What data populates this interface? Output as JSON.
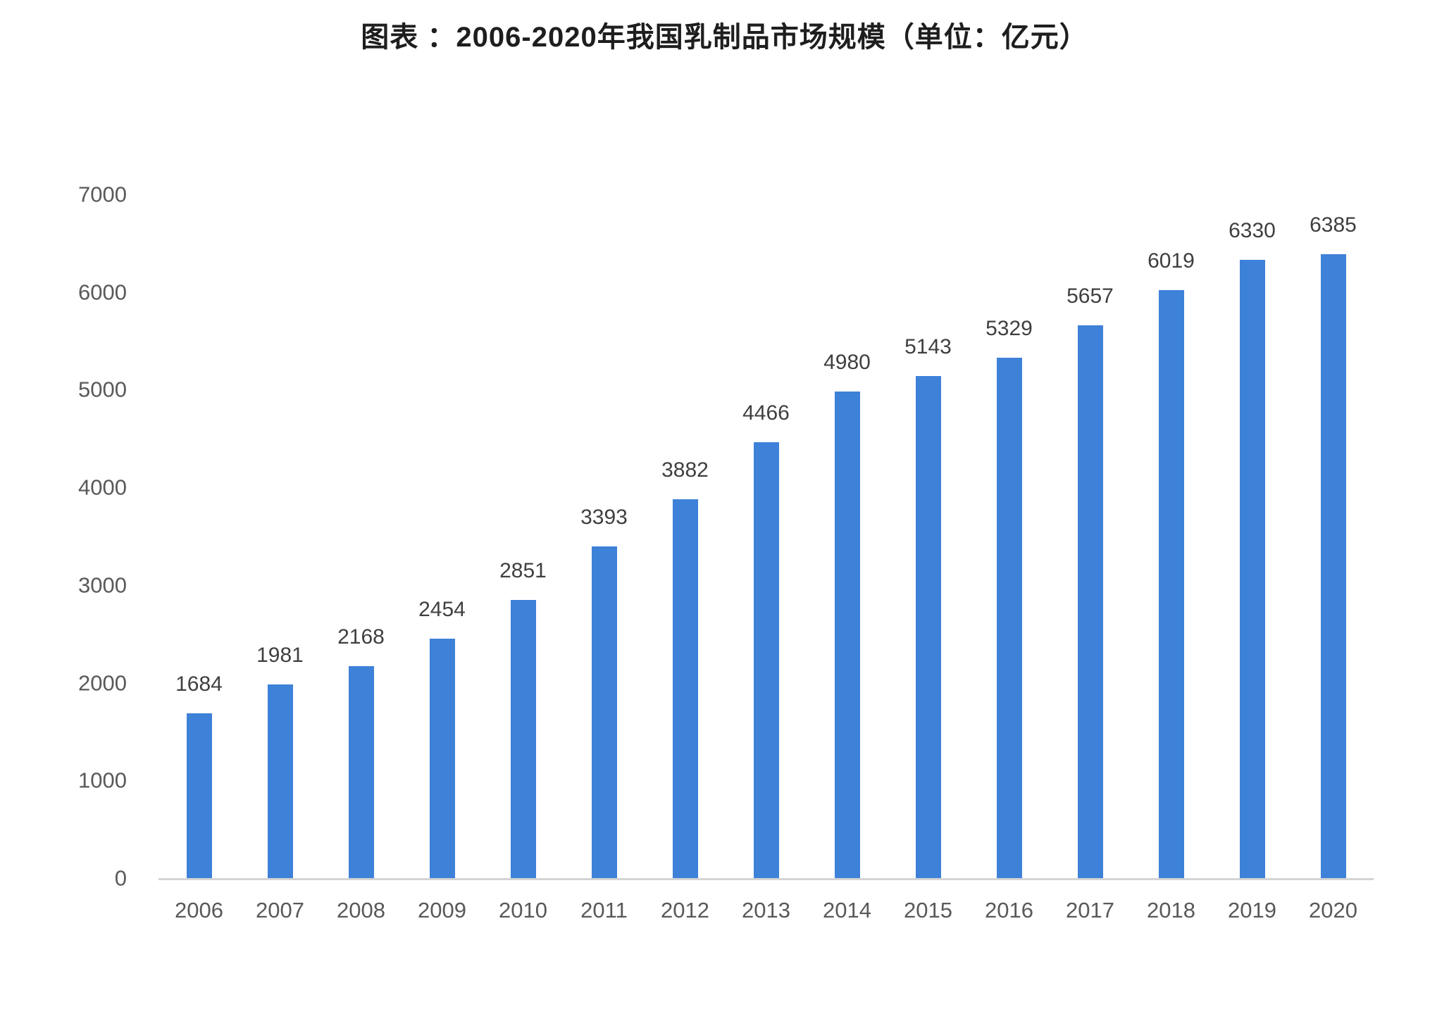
{
  "chart_data": {
    "type": "bar",
    "title": "图表 ：2006-2020年我国乳制品市场规模（单位：亿元）",
    "categories": [
      "2006",
      "2007",
      "2008",
      "2009",
      "2010",
      "2011",
      "2012",
      "2013",
      "2014",
      "2015",
      "2016",
      "2017",
      "2018",
      "2019",
      "2020"
    ],
    "values": [
      1684,
      1981,
      2168,
      2454,
      2851,
      3393,
      3882,
      4466,
      4980,
      5143,
      5329,
      5657,
      6019,
      6330,
      6385
    ],
    "xlabel": "",
    "ylabel": "",
    "ylim": [
      0,
      7000
    ],
    "y_ticks": [
      0,
      1000,
      2000,
      3000,
      4000,
      5000,
      6000,
      7000
    ],
    "grid": "off",
    "legend": "none",
    "data_labels": "above-bars",
    "colors": {
      "bar": "#3e81d8",
      "value_label": "#3f3f3f",
      "tick_label": "#595959",
      "axis_line": "#d4d4d4",
      "title": "#1e1e1e",
      "background": "#ffffff"
    }
  }
}
